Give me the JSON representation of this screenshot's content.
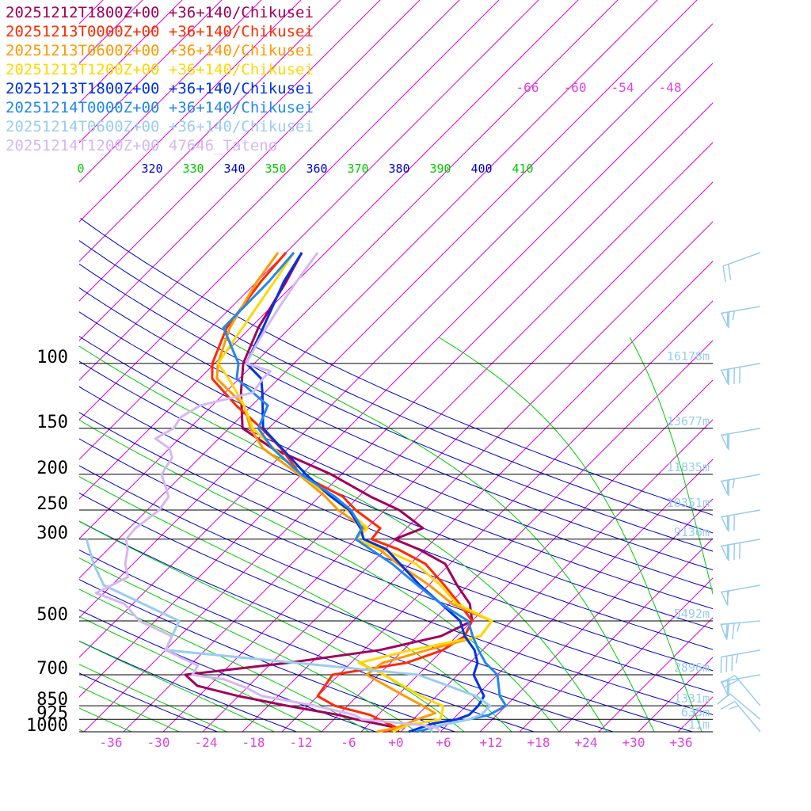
{
  "chart_data": {
    "type": "line",
    "title": "",
    "xlabel": "",
    "ylabel": "",
    "pressure_levels": [
      100,
      150,
      200,
      250,
      300,
      500,
      700,
      850,
      925,
      1000
    ],
    "pressure_labels": [
      "100",
      "150",
      "200",
      "250",
      "300",
      "500",
      "700",
      "850",
      "925",
      "1000"
    ],
    "temperature_ticks": [
      "-36",
      "-30",
      "-24",
      "-18",
      "-12",
      "-6",
      "+0",
      "+6",
      "+12",
      "+18",
      "+24",
      "+30",
      "+36"
    ],
    "upper_temp_labels": [
      "-66",
      "-60",
      "-54",
      "-48"
    ],
    "theta_labels": [
      "0",
      "320",
      "330",
      "340",
      "350",
      "360",
      "370",
      "380",
      "390",
      "400",
      "410"
    ],
    "height_labels": [
      "16178m",
      "13677m",
      "11835m",
      "10351m",
      "9136m",
      "5492m",
      "2896m",
      "1331m",
      "635m",
      "-11m"
    ],
    "legend": [
      {
        "text": "20251212T1800Z+00 +36+140/Chikusei",
        "color": "#a0005a"
      },
      {
        "text": "20251213T0000Z+00 +36+140/Chikusei",
        "color": "#ff2a00"
      },
      {
        "text": "20251213T0600Z+00 +36+140/Chikusei",
        "color": "#ff9900"
      },
      {
        "text": "20251213T1200Z+00 +36+140/Chikusei",
        "color": "#ffd800"
      },
      {
        "text": "20251213T1800Z+00 +36+140/Chikusei",
        "color": "#0033e0"
      },
      {
        "text": "20251214T0000Z+00 +36+140/Chikusei",
        "color": "#2288ee"
      },
      {
        "text": "20251214T0600Z+00 +36+140/Chikusei",
        "color": "#99ccf0"
      },
      {
        "text": "20251214T1200Z+00 47646_Tateno",
        "color": "#d4b8f2"
      }
    ],
    "colors": {
      "isotherm": "#dd00dd",
      "dry_adiabat": "#0000cc",
      "moist_adiabat": "#00cc00",
      "isobar": "#000000",
      "wind_barb": "#99ccf0",
      "axis_label": "#dd44dd"
    },
    "temp_series": [
      {
        "color": "#a0005a",
        "points": [
          [
            1000,
            -0.3
          ],
          [
            975,
            -1
          ],
          [
            925,
            -7.2
          ],
          [
            900,
            -10
          ],
          [
            850,
            -17.6
          ],
          [
            800,
            -25
          ],
          [
            750,
            -31.5
          ],
          [
            700,
            -34.4
          ],
          [
            650,
            -23
          ],
          [
            600,
            -13
          ],
          [
            550,
            -7
          ],
          [
            500,
            -5
          ],
          [
            450,
            -7.4
          ],
          [
            400,
            -11.4
          ],
          [
            350,
            -15.6
          ],
          [
            320,
            -20.7
          ],
          [
            300,
            -25.1
          ],
          [
            280,
            -22.9
          ],
          [
            250,
            -28.2
          ],
          [
            230,
            -33.5
          ],
          [
            200,
            -41.3
          ],
          [
            170,
            -52
          ],
          [
            150,
            -58.3
          ],
          [
            120,
            -63
          ],
          [
            100,
            -66.4
          ],
          [
            80,
            -69
          ],
          [
            60,
            -71.3
          ],
          [
            50,
            -73
          ]
        ]
      },
      {
        "color": "#ff2a00",
        "points": [
          [
            1000,
            -2
          ],
          [
            975,
            -1
          ],
          [
            925,
            -4.3
          ],
          [
            900,
            -6
          ],
          [
            850,
            -11.6
          ],
          [
            800,
            -15
          ],
          [
            700,
            -15.8
          ],
          [
            650,
            -8
          ],
          [
            600,
            -5
          ],
          [
            550,
            -4
          ],
          [
            500,
            -5
          ],
          [
            450,
            -8.7
          ],
          [
            400,
            -13
          ],
          [
            350,
            -18.1
          ],
          [
            320,
            -23.3
          ],
          [
            300,
            -28
          ],
          [
            280,
            -28.3
          ],
          [
            250,
            -33.7
          ],
          [
            230,
            -37
          ],
          [
            200,
            -45.2
          ],
          [
            170,
            -50.9
          ],
          [
            150,
            -55.9
          ],
          [
            130,
            -62
          ],
          [
            110,
            -68.4
          ],
          [
            100,
            -70.3
          ],
          [
            80,
            -73
          ],
          [
            60,
            -74.5
          ],
          [
            50,
            -75
          ]
        ]
      },
      {
        "color": "#ff9900",
        "points": [
          [
            1000,
            -3
          ],
          [
            975,
            -1
          ],
          [
            925,
            0.5
          ],
          [
            890,
            2
          ],
          [
            850,
            -0.5
          ],
          [
            800,
            -4
          ],
          [
            700,
            -11.5
          ],
          [
            650,
            -11
          ],
          [
            600,
            -7
          ],
          [
            550,
            -2
          ],
          [
            500,
            -2.5
          ],
          [
            450,
            -9.6
          ],
          [
            400,
            -14.9
          ],
          [
            350,
            -21.6
          ],
          [
            320,
            -25.7
          ],
          [
            300,
            -30
          ],
          [
            280,
            -30.3
          ],
          [
            250,
            -35.9
          ],
          [
            230,
            -39.2
          ],
          [
            200,
            -45.4
          ],
          [
            170,
            -53.2
          ],
          [
            150,
            -57.3
          ],
          [
            130,
            -61
          ],
          [
            110,
            -67.8
          ],
          [
            100,
            -69.6
          ],
          [
            80,
            -72.6
          ],
          [
            60,
            -75
          ],
          [
            50,
            -76
          ]
        ]
      },
      {
        "color": "#ffd800",
        "points": [
          [
            1000,
            -1
          ],
          [
            960,
            0
          ],
          [
            925,
            3.4
          ],
          [
            870,
            2.5
          ],
          [
            850,
            2
          ],
          [
            800,
            -2
          ],
          [
            700,
            -9.3
          ],
          [
            650,
            -14
          ],
          [
            600,
            -9
          ],
          [
            550,
            -2
          ],
          [
            500,
            -2.5
          ],
          [
            450,
            -9
          ],
          [
            400,
            -13.5
          ],
          [
            350,
            -19.3
          ],
          [
            320,
            -25.2
          ],
          [
            300,
            -30
          ],
          [
            280,
            -29.9
          ],
          [
            250,
            -34.8
          ],
          [
            230,
            -38.5
          ],
          [
            200,
            -45.2
          ],
          [
            170,
            -51.8
          ],
          [
            150,
            -57
          ],
          [
            130,
            -61
          ],
          [
            110,
            -66.3
          ],
          [
            100,
            -69.6
          ],
          [
            80,
            -71
          ],
          [
            60,
            -72.8
          ],
          [
            50,
            -74
          ]
        ]
      },
      {
        "color": "#0033e0",
        "points": [
          [
            1000,
            1
          ],
          [
            950,
            3
          ],
          [
            925,
            5.5
          ],
          [
            900,
            6.5
          ],
          [
            850,
            6.5
          ],
          [
            800,
            6
          ],
          [
            700,
            2
          ],
          [
            650,
            1
          ],
          [
            600,
            -1
          ],
          [
            550,
            -4
          ],
          [
            500,
            -6.5
          ],
          [
            450,
            -11
          ],
          [
            400,
            -16.1
          ],
          [
            350,
            -21.3
          ],
          [
            320,
            -24.8
          ],
          [
            300,
            -29
          ],
          [
            280,
            -30.8
          ],
          [
            250,
            -34.5
          ],
          [
            230,
            -38.5
          ],
          [
            200,
            -44.5
          ],
          [
            170,
            -50.8
          ],
          [
            150,
            -55.7
          ],
          [
            120,
            -60.3
          ],
          [
            110,
            -62.2
          ],
          [
            100,
            -66
          ],
          [
            80,
            -68.4
          ],
          [
            60,
            -71.6
          ],
          [
            50,
            -73
          ]
        ]
      },
      {
        "color": "#2288ee",
        "points": [
          [
            1000,
            2
          ],
          [
            950,
            5
          ],
          [
            925,
            7
          ],
          [
            900,
            9
          ],
          [
            850,
            10
          ],
          [
            800,
            8
          ],
          [
            700,
            5
          ],
          [
            650,
            2
          ],
          [
            600,
            -0.5
          ],
          [
            550,
            -3
          ],
          [
            500,
            -5.5
          ],
          [
            450,
            -11
          ],
          [
            400,
            -16.4
          ],
          [
            350,
            -22.3
          ],
          [
            320,
            -26.8
          ],
          [
            300,
            -30
          ],
          [
            280,
            -30.6
          ],
          [
            250,
            -34.3
          ],
          [
            230,
            -38
          ],
          [
            200,
            -45.1
          ],
          [
            170,
            -52
          ],
          [
            150,
            -56.3
          ],
          [
            130,
            -58
          ],
          [
            110,
            -65.3
          ],
          [
            100,
            -67
          ],
          [
            80,
            -73.4
          ],
          [
            60,
            -73.5
          ],
          [
            50,
            -74
          ]
        ]
      },
      {
        "color": "#99ccf0",
        "points": [
          [
            1000,
            4
          ],
          [
            975,
            3
          ],
          [
            950,
            5
          ],
          [
            925,
            7
          ],
          [
            900,
            8
          ],
          [
            850,
            8
          ],
          [
            800,
            5
          ],
          [
            700,
            -5
          ],
          [
            600,
            -40
          ],
          [
            500,
            -42
          ],
          [
            400,
            -56
          ],
          [
            350,
            -60
          ],
          [
            300,
            -64
          ]
        ]
      },
      {
        "color": "#d4b8f2",
        "points": [
          [
            1000,
            5
          ],
          [
            975,
            4
          ],
          [
            960,
            2
          ],
          [
            925,
            -6.5
          ],
          [
            900,
            -8
          ],
          [
            850,
            -14
          ],
          [
            800,
            -22
          ],
          [
            760,
            -25
          ],
          [
            720,
            -29
          ],
          [
            700,
            -33.5
          ],
          [
            660,
            -34
          ],
          [
            630,
            -37
          ],
          [
            600,
            -40
          ],
          [
            550,
            -41
          ],
          [
            500,
            -47
          ],
          [
            450,
            -51
          ],
          [
            420,
            -56
          ],
          [
            380,
            -54
          ],
          [
            350,
            -56
          ],
          [
            320,
            -57.5
          ],
          [
            300,
            -59
          ],
          [
            280,
            -59.2
          ],
          [
            250,
            -58.5
          ],
          [
            230,
            -59
          ],
          [
            200,
            -62.7
          ],
          [
            180,
            -63.5
          ],
          [
            170,
            -65
          ],
          [
            160,
            -68
          ],
          [
            150,
            -67
          ],
          [
            140,
            -67.5
          ],
          [
            130,
            -66.5
          ],
          [
            120,
            -61.5
          ],
          [
            110,
            -62
          ],
          [
            105,
            -62
          ],
          [
            100,
            -66
          ],
          [
            90,
            -67
          ],
          [
            80,
            -68
          ],
          [
            70,
            -69
          ],
          [
            60,
            -70
          ],
          [
            50,
            -71
          ]
        ]
      }
    ],
    "wind_barbs": [
      {
        "p": 50,
        "dir": 250,
        "kt": 20
      },
      {
        "p": 70,
        "dir": 260,
        "kt": 65
      },
      {
        "p": 100,
        "dir": 260,
        "kt": 80
      },
      {
        "p": 150,
        "dir": 260,
        "kt": 60
      },
      {
        "p": 200,
        "dir": 260,
        "kt": 65
      },
      {
        "p": 250,
        "dir": 260,
        "kt": 70
      },
      {
        "p": 300,
        "dir": 260,
        "kt": 80
      },
      {
        "p": 400,
        "dir": 260,
        "kt": 55
      },
      {
        "p": 500,
        "dir": 265,
        "kt": 75
      },
      {
        "p": 600,
        "dir": 260,
        "kt": 35
      },
      {
        "p": 700,
        "dir": 260,
        "kt": 60
      },
      {
        "p": 850,
        "dir": 320,
        "kt": 20
      },
      {
        "p": 925,
        "dir": 310,
        "kt": 10
      },
      {
        "p": 1000,
        "dir": 320,
        "kt": 15
      }
    ]
  }
}
